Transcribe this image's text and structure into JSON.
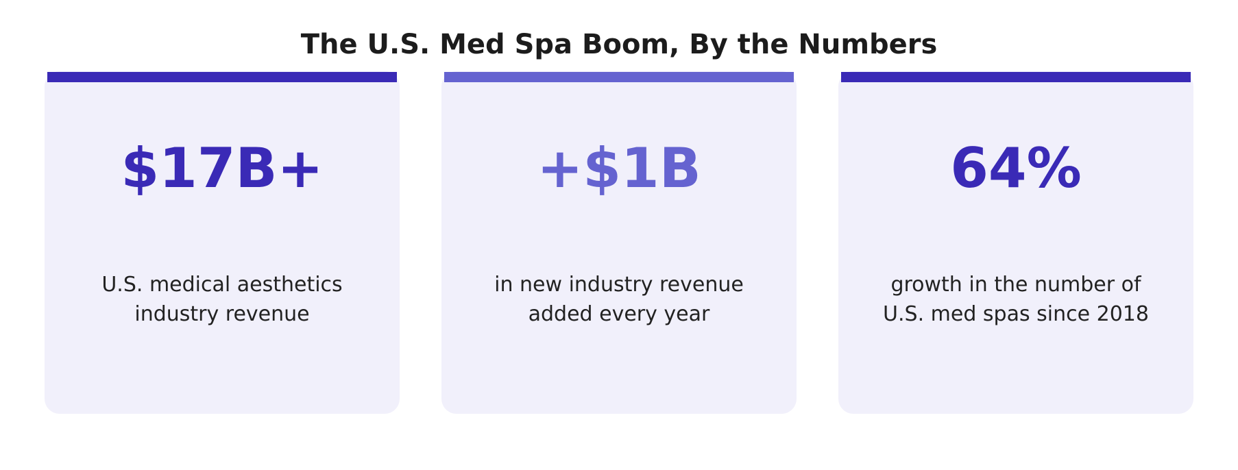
{
  "title": "The U.S. Med Spa Boom, By the Numbers",
  "colors": {
    "primary": "#3a2ab6",
    "secondary": "#6563d0",
    "card_bg": "#f1f0fb",
    "text": "#222222"
  },
  "stats": [
    {
      "value": "$17B+",
      "line1": "U.S. medical aesthetics",
      "line2": "industry revenue",
      "accent": "#3a2ab6"
    },
    {
      "value": "+$1B",
      "line1": "in new industry revenue",
      "line2": "added every year",
      "accent": "#6563d0"
    },
    {
      "value": "64%",
      "line1": "growth in the number of",
      "line2": "U.S. med spas since 2018",
      "accent": "#3a2ab6"
    }
  ]
}
